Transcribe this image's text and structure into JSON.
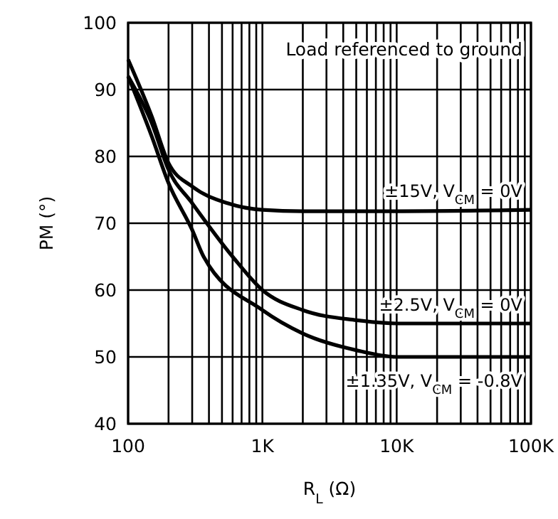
{
  "chart_data": {
    "type": "line",
    "xlabel": "R$_{L}$ (Ω)",
    "ylabel": "PM (°)",
    "log": "x",
    "grid": true,
    "xlim": [
      100,
      100000
    ],
    "ylim": [
      40,
      100
    ],
    "xticks": [
      {
        "value": 100,
        "label": "100"
      },
      {
        "value": 200,
        "label": null
      },
      {
        "value": 300,
        "label": null
      },
      {
        "value": 400,
        "label": null
      },
      {
        "value": 500,
        "label": null
      },
      {
        "value": 600,
        "label": null
      },
      {
        "value": 700,
        "label": null
      },
      {
        "value": 800,
        "label": null
      },
      {
        "value": 900,
        "label": null
      },
      {
        "value": 1000,
        "label": "1K"
      },
      {
        "value": 2000,
        "label": null
      },
      {
        "value": 3000,
        "label": null
      },
      {
        "value": 4000,
        "label": null
      },
      {
        "value": 5000,
        "label": null
      },
      {
        "value": 6000,
        "label": null
      },
      {
        "value": 7000,
        "label": null
      },
      {
        "value": 8000,
        "label": null
      },
      {
        "value": 9000,
        "label": null
      },
      {
        "value": 10000,
        "label": "10K"
      },
      {
        "value": 20000,
        "label": null
      },
      {
        "value": 30000,
        "label": null
      },
      {
        "value": 40000,
        "label": null
      },
      {
        "value": 50000,
        "label": null
      },
      {
        "value": 60000,
        "label": null
      },
      {
        "value": 70000,
        "label": null
      },
      {
        "value": 80000,
        "label": null
      },
      {
        "value": 90000,
        "label": null
      },
      {
        "value": 100000,
        "label": "100K"
      }
    ],
    "yticks": [
      40,
      50,
      60,
      70,
      80,
      90,
      100
    ],
    "annotations": [
      "Load referenced to ground"
    ],
    "series": [
      {
        "name": "±15V, V$_{CM}$ = 0V",
        "color": "#000000",
        "x": [
          100,
          150,
          200,
          300,
          550,
          1000,
          2000,
          10000,
          100000
        ],
        "values": [
          94.5,
          86,
          79,
          75.5,
          73,
          72,
          71.8,
          71.8,
          72
        ]
      },
      {
        "name": "±2.5V, V$_{CM}$ = 0V",
        "color": "#000000",
        "x": [
          100,
          150,
          200,
          300,
          600,
          1000,
          2000,
          5000,
          10000,
          100000
        ],
        "values": [
          92,
          85,
          78,
          73,
          65,
          60,
          57,
          55.5,
          55,
          55
        ]
      },
      {
        "name": "±1.35V, V$_{CM}$ = -0.8V",
        "color": "#000000",
        "x": [
          100,
          150,
          200,
          300,
          365,
          1000,
          2000,
          5000,
          10000,
          100000
        ],
        "values": [
          92,
          83,
          76,
          69,
          65,
          57,
          53.5,
          51,
          50,
          50
        ]
      }
    ]
  }
}
